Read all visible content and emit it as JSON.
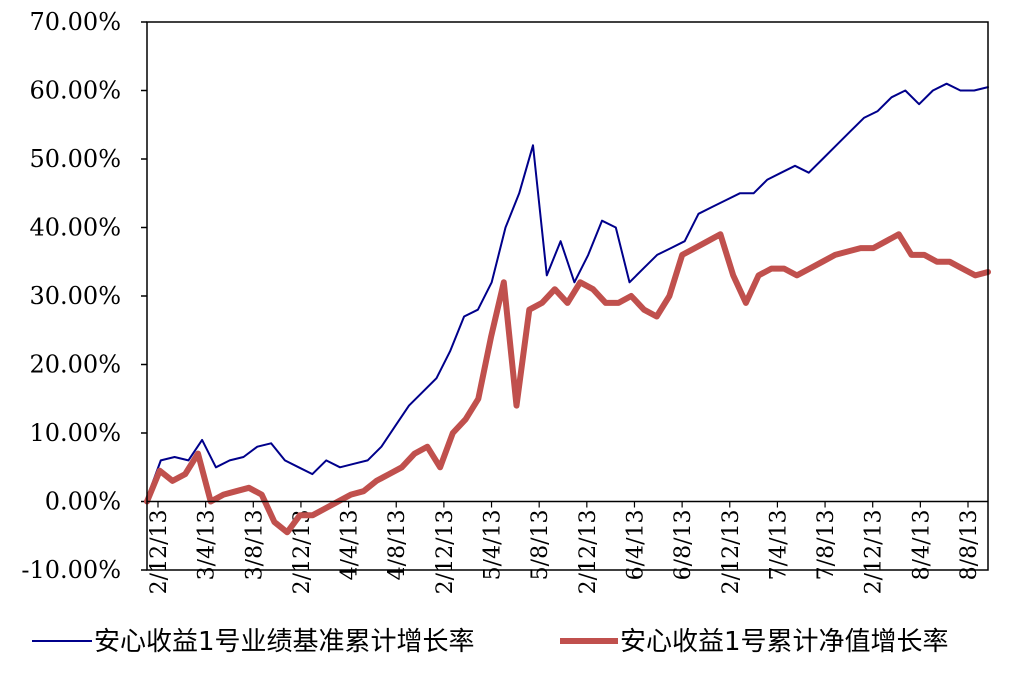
{
  "chart_data": {
    "type": "line",
    "title": "",
    "xlabel": "",
    "ylabel": "",
    "ylim": [
      -10,
      70
    ],
    "y_ticks": [
      "-10.00%",
      "0.00%",
      "10.00%",
      "20.00%",
      "30.00%",
      "40.00%",
      "50.00%",
      "60.00%",
      "70.00%"
    ],
    "x_ticks": [
      "2/12/13",
      "3/4/13",
      "3/8/13",
      "2/12/13",
      "4/4/13",
      "4/8/13",
      "2/12/13",
      "5/4/13",
      "5/8/13",
      "2/12/13",
      "6/4/13",
      "6/8/13",
      "2/12/13",
      "7/4/13",
      "7/8/13",
      "2/12/13",
      "8/4/13",
      "8/8/13"
    ],
    "legend_position": "bottom",
    "grid": false,
    "series": [
      {
        "name": "安心收益1号业绩基准累计增长率",
        "color": "#00008B",
        "values": [
          0.5,
          6,
          6.5,
          6,
          9,
          5,
          6,
          6.5,
          8,
          8.5,
          6,
          5,
          4,
          6,
          5,
          5.5,
          6,
          8,
          11,
          14,
          16,
          18,
          22,
          27,
          28,
          32,
          40,
          45,
          52,
          33,
          38,
          32,
          36,
          41,
          40,
          32,
          34,
          36,
          37,
          38,
          42,
          43,
          44,
          45,
          45,
          47,
          48,
          49,
          48,
          50,
          52,
          54,
          56,
          57,
          59,
          60,
          58,
          60,
          61,
          60,
          60,
          60.5
        ]
      },
      {
        "name": "安心收益1号累计净值增长率",
        "color": "#C0504D",
        "values": [
          0,
          4.5,
          3,
          4,
          7,
          0,
          1,
          1.5,
          2,
          1,
          -3,
          -4.5,
          -2,
          -2,
          -1,
          0,
          1,
          1.5,
          3,
          4,
          5,
          7,
          8,
          5,
          10,
          12,
          15,
          24,
          32,
          14,
          28,
          29,
          31,
          29,
          32,
          31,
          29,
          29,
          30,
          28,
          27,
          30,
          36,
          37,
          38,
          39,
          33,
          29,
          33,
          34,
          34,
          33,
          34,
          35,
          36,
          36.5,
          37,
          37,
          38,
          39,
          36,
          36,
          35,
          35,
          34,
          33,
          33.5
        ]
      }
    ]
  }
}
